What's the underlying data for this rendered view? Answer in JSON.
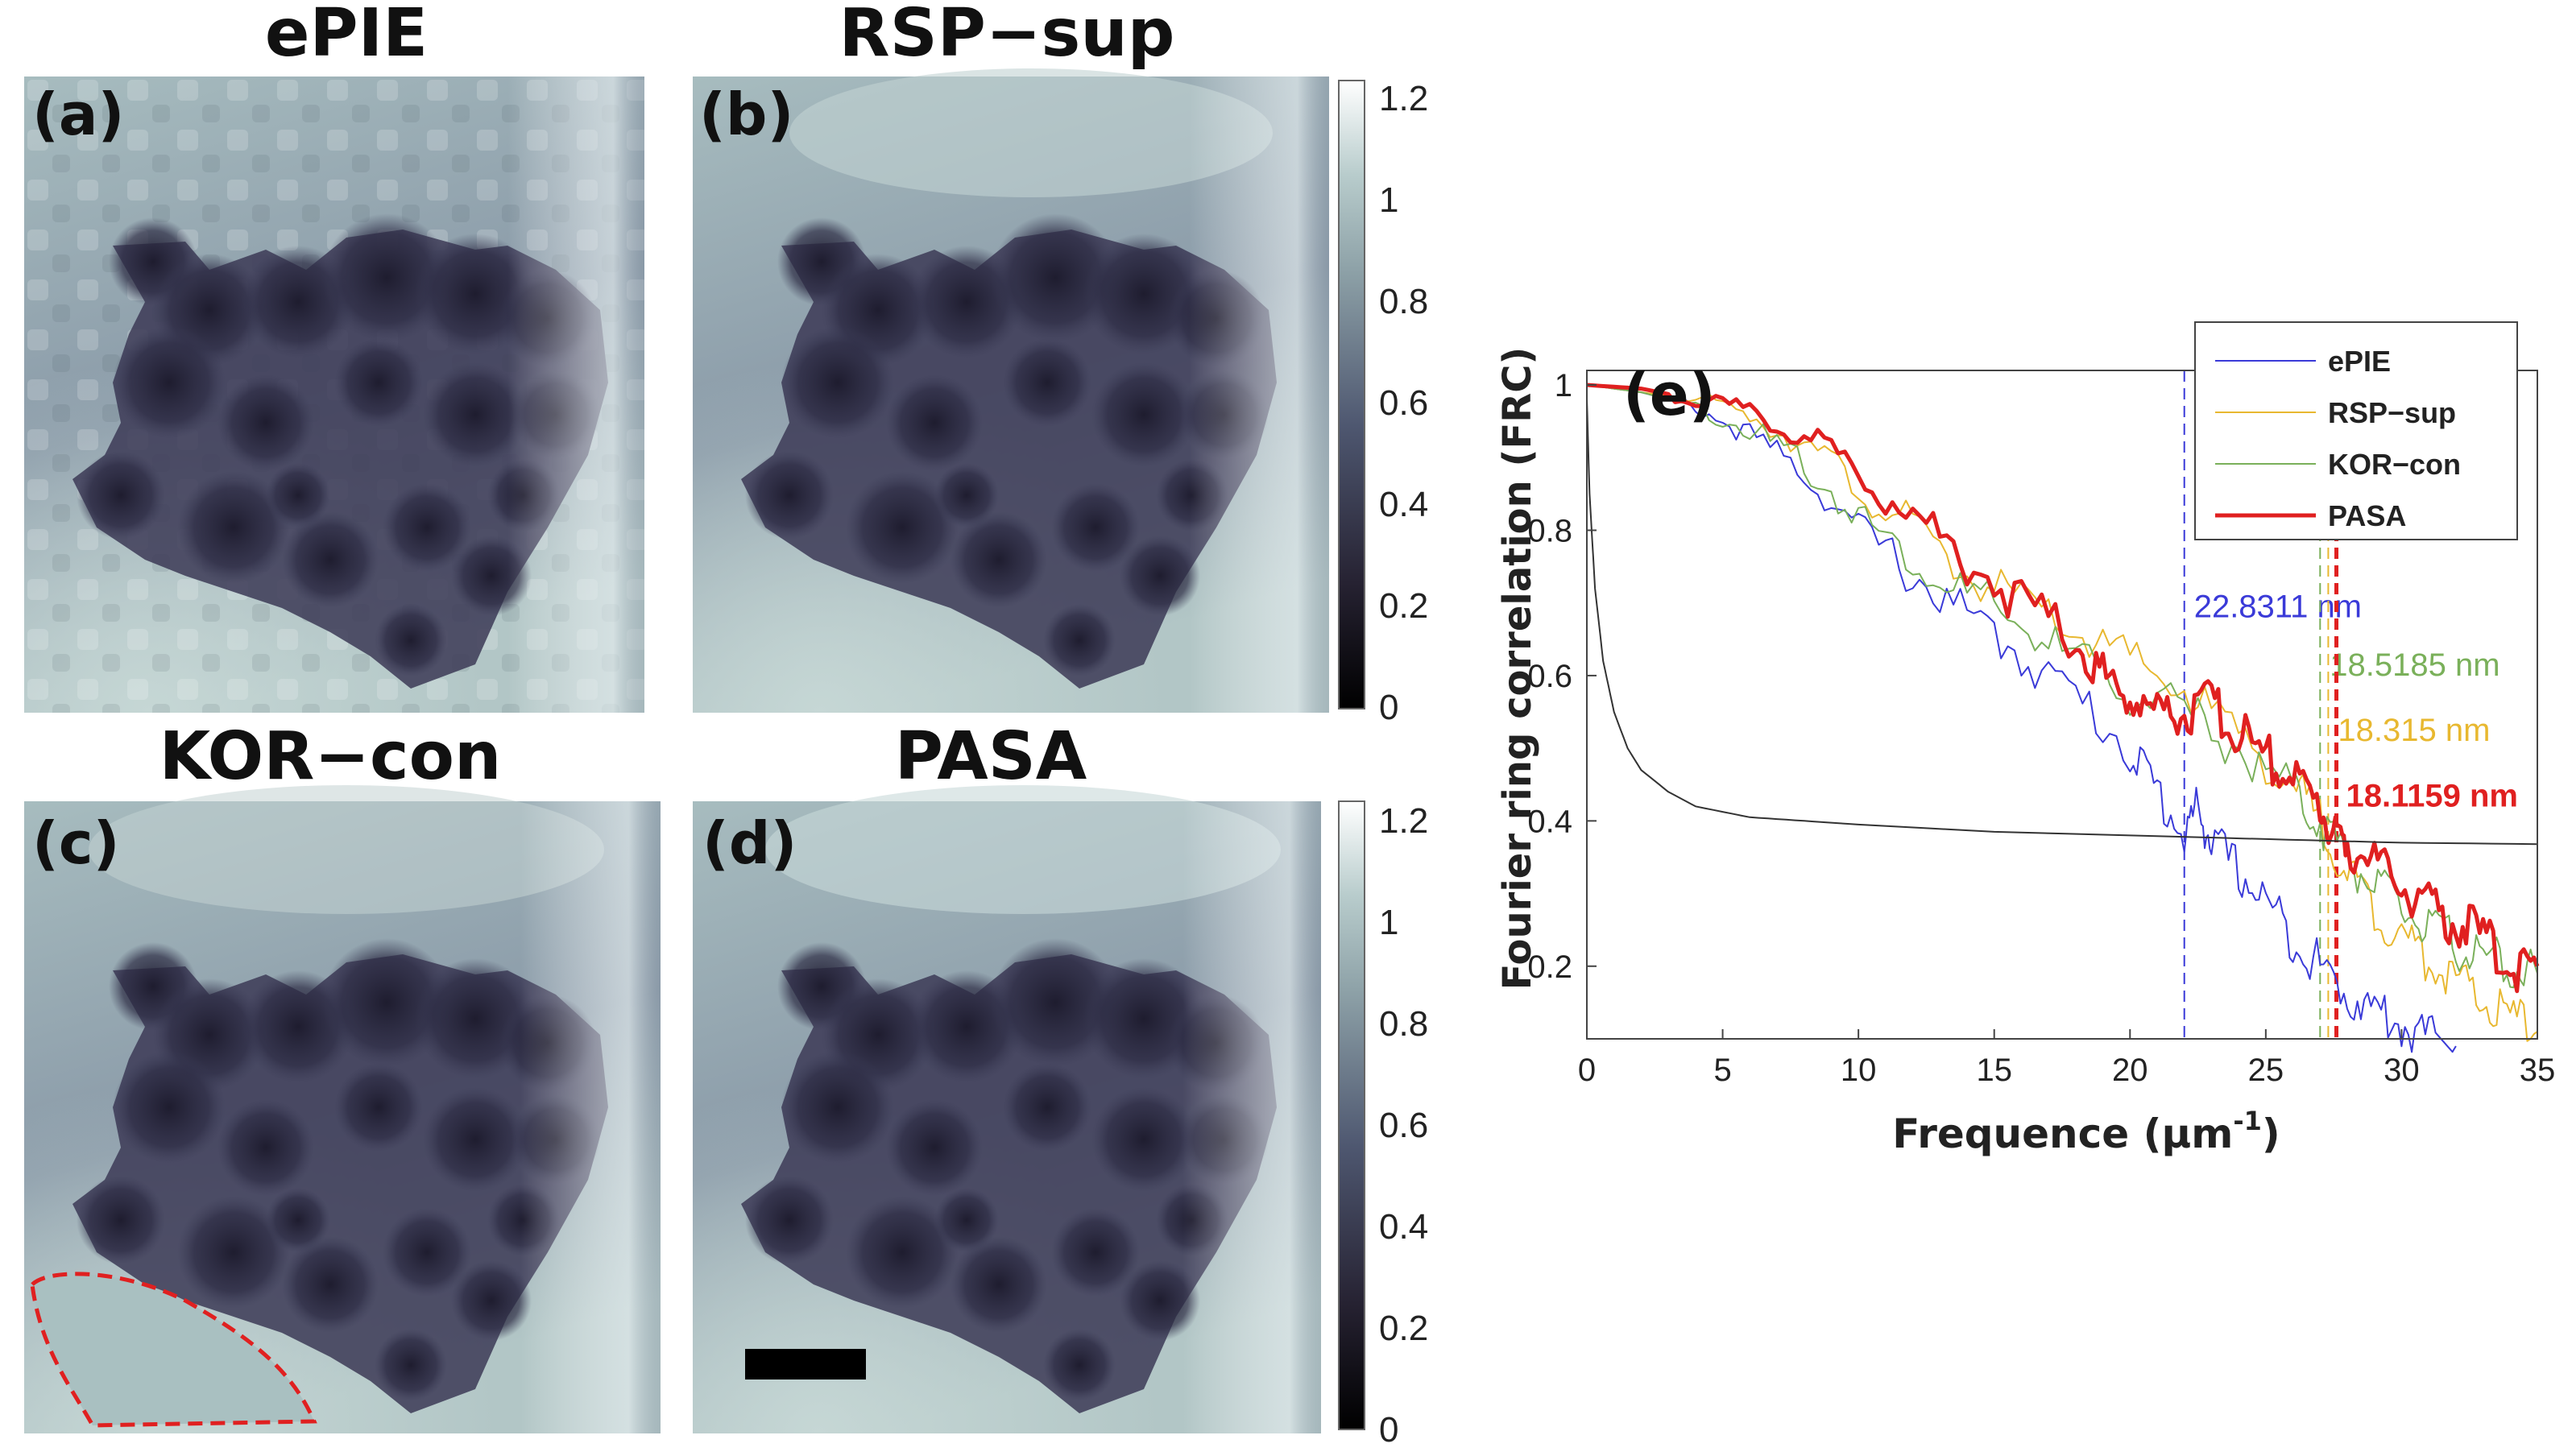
{
  "panels": [
    {
      "id": "a",
      "title": "ePIE",
      "label": "(a)"
    },
    {
      "id": "b",
      "title": "RSP−sup",
      "label": "(b)"
    },
    {
      "id": "c",
      "title": "KOR−con",
      "label": "(c)"
    },
    {
      "id": "d",
      "title": "PASA",
      "label": "(d)"
    }
  ],
  "colorbar": {
    "ticks": [
      "1.2",
      "1",
      "0.8",
      "0.6",
      "0.4",
      "0.2",
      "0"
    ],
    "range": [
      0,
      1.25
    ],
    "colormap": "bone"
  },
  "chart_data": {
    "type": "line",
    "panel_label": "(e)",
    "xlabel": "Frequence (μm",
    "xlabel_sup": "-1",
    "xlabel_end": ")",
    "ylabel": "Fourier ring correlation (FRC)",
    "xlim": [
      0,
      35
    ],
    "ylim": [
      0.1,
      1.02
    ],
    "xticks": [
      0,
      5,
      10,
      15,
      20,
      25,
      30,
      35
    ],
    "yticks": [
      0.2,
      0.4,
      0.6,
      0.8,
      1
    ],
    "series": [
      {
        "name": "ePIE",
        "color": "#3a3ad8",
        "width": 2,
        "x": [
          0,
          2,
          4,
          6,
          8,
          10,
          12,
          14,
          16,
          18,
          20,
          21,
          22,
          22.5,
          23,
          24,
          25,
          26,
          27,
          28,
          29,
          30,
          31,
          32
        ],
        "y": [
          1,
          0.99,
          0.97,
          0.93,
          0.88,
          0.8,
          0.74,
          0.68,
          0.63,
          0.57,
          0.5,
          0.44,
          0.38,
          0.42,
          0.37,
          0.33,
          0.29,
          0.24,
          0.2,
          0.16,
          0.14,
          0.12,
          0.1,
          0.09
        ]
      },
      {
        "name": "RSP−sup",
        "color": "#e8b830",
        "width": 2,
        "x": [
          0,
          2,
          4,
          6,
          8,
          10,
          12,
          14,
          16,
          18,
          20,
          22,
          24,
          26,
          27,
          28,
          29,
          30,
          31,
          32,
          33,
          34,
          35
        ],
        "y": [
          1,
          0.99,
          0.98,
          0.96,
          0.92,
          0.86,
          0.8,
          0.74,
          0.7,
          0.66,
          0.62,
          0.58,
          0.52,
          0.45,
          0.4,
          0.33,
          0.28,
          0.24,
          0.21,
          0.18,
          0.15,
          0.13,
          0.11
        ]
      },
      {
        "name": "KOR−con",
        "color": "#7ab05a",
        "width": 2,
        "x": [
          0,
          2,
          4,
          6,
          8,
          10,
          12,
          14,
          16,
          18,
          20,
          22,
          24,
          26,
          27,
          28,
          29,
          30,
          31,
          32,
          33,
          34,
          35
        ],
        "y": [
          1,
          0.99,
          0.97,
          0.94,
          0.89,
          0.82,
          0.76,
          0.71,
          0.67,
          0.62,
          0.58,
          0.55,
          0.5,
          0.44,
          0.4,
          0.35,
          0.31,
          0.28,
          0.25,
          0.23,
          0.21,
          0.2,
          0.19
        ]
      },
      {
        "name": "PASA",
        "color": "#e02020",
        "width": 5,
        "x": [
          0,
          2,
          4,
          6,
          8,
          10,
          12,
          14,
          16,
          18,
          19,
          20,
          21,
          22,
          23,
          24,
          25,
          26,
          27,
          27.5,
          28,
          29,
          30,
          31,
          32,
          33,
          34,
          35
        ],
        "y": [
          1,
          0.995,
          0.98,
          0.96,
          0.93,
          0.88,
          0.82,
          0.76,
          0.7,
          0.65,
          0.6,
          0.57,
          0.55,
          0.55,
          0.56,
          0.52,
          0.49,
          0.46,
          0.42,
          0.38,
          0.37,
          0.34,
          0.31,
          0.28,
          0.26,
          0.24,
          0.2,
          0.2
        ]
      },
      {
        "name": "threshold",
        "color": "#333333",
        "width": 2,
        "legend": false,
        "x": [
          0,
          0.1,
          0.3,
          0.6,
          1,
          1.5,
          2,
          3,
          4,
          6,
          8,
          10,
          15,
          20,
          25,
          30,
          35
        ],
        "y": [
          0.98,
          0.85,
          0.72,
          0.62,
          0.55,
          0.5,
          0.47,
          0.44,
          0.42,
          0.405,
          0.4,
          0.395,
          0.385,
          0.38,
          0.375,
          0.37,
          0.368
        ]
      }
    ],
    "vlines": [
      {
        "x": 22.0,
        "color": "#3a3ad8",
        "dashed": true,
        "width": 2,
        "label": "22.8311 nm",
        "label_y": 0.68,
        "bold": false
      },
      {
        "x": 27.0,
        "color": "#7ab05a",
        "dashed": true,
        "width": 2,
        "label": "18.5185 nm",
        "label_y": 0.6,
        "bold": false
      },
      {
        "x": 27.3,
        "color": "#e8b830",
        "dashed": true,
        "width": 2,
        "label": "18.315 nm",
        "label_y": 0.51,
        "bold": false
      },
      {
        "x": 27.6,
        "color": "#e02020",
        "dashed": true,
        "width": 5,
        "label": "18.1159 nm",
        "label_y": 0.42,
        "bold": true
      }
    ],
    "legend_position": "top-right"
  },
  "annotations": {
    "label_colors": {
      "a": "#3a3ad8",
      "b": "#7ab05a",
      "c": "#e8b830",
      "d": "#e02020"
    },
    "roi_outline": "#e02020"
  }
}
